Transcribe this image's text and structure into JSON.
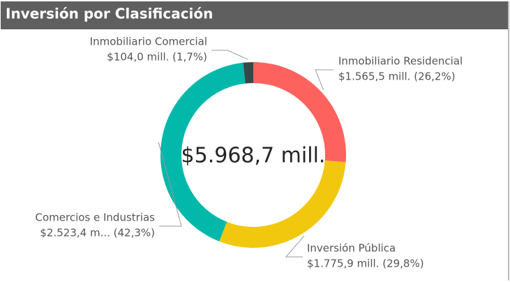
{
  "chart_data": {
    "type": "donut",
    "title": "Inversión por Clasificación",
    "center_label": "$5.968,7 mill.",
    "categories": [
      "Inmobiliario Residencial",
      "Inversión Pública",
      "Comercios e Industrias",
      "Inmobiliario Comercial"
    ],
    "values": [
      1565.5,
      1775.9,
      2523.4,
      104.0
    ],
    "value_labels": [
      "$1.565,5 mill. (26,2%)",
      "$1.775,9 mill. (29,8%)",
      "$2.523,4 m... (42,3%)",
      "$104,0 mill. (1,7%)"
    ],
    "colors": [
      "#fd625e",
      "#f2c80f",
      "#01b8aa",
      "#374649"
    ]
  }
}
